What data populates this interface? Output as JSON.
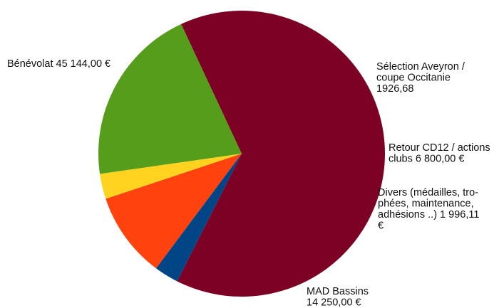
{
  "chart_data": {
    "type": "pie",
    "title": "",
    "slices": [
      {
        "name": "Bénévolat",
        "value": 45144.0,
        "color": "#7d0025",
        "label_lines": [
          "Bénévolat  45 144,00 €"
        ]
      },
      {
        "name": "Sélection Aveyron / coupe Occitanie",
        "value": 1926.68,
        "color": "#004586",
        "label_lines": [
          "Sélection Aveyron /",
          "coupe Occitanie",
          "1926,68"
        ]
      },
      {
        "name": "Retour CD12 / actions clubs",
        "value": 6800.0,
        "color": "#ff420e",
        "label_lines": [
          "Retour CD12 / actions",
          "clubs  6 800,00 €"
        ]
      },
      {
        "name": "Divers (médailles, trophées, maintenance, adhésions ..)",
        "value": 1996.11,
        "color": "#ffd320",
        "label_lines": [
          "Divers (médailles, tro-",
          "phées, maintenance,",
          "adhésions ..)  1 996,11",
          "€"
        ]
      },
      {
        "name": "MAD Bassins",
        "value": 14250.0,
        "color": "#579d1c",
        "label_lines": [
          "MAD Bassins",
          "14 250,00 €"
        ]
      }
    ],
    "start_angle_deg": 335,
    "direction": "clockwise",
    "legend": "none"
  }
}
